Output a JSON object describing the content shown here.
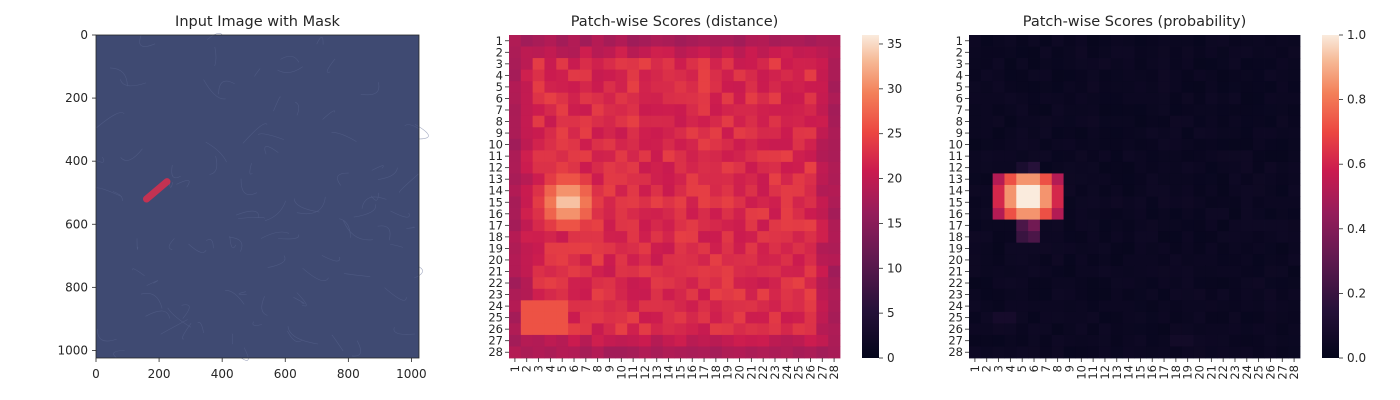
{
  "chart_data": [
    {
      "type": "image",
      "title": "Input Image with Mask",
      "xlim": [
        0,
        1024
      ],
      "ylim": [
        1024,
        0
      ],
      "x_ticks": [
        "0",
        "200",
        "400",
        "600",
        "800",
        "1000"
      ],
      "y_ticks": [
        "0",
        "200",
        "400",
        "600",
        "800",
        "1000"
      ],
      "x_tick_values": [
        0,
        200,
        400,
        600,
        800,
        1000
      ],
      "y_tick_values": [
        0,
        200,
        400,
        600,
        800,
        1000
      ],
      "background_color": "#3f4a72",
      "mask_color": "#d2304f",
      "mask_region": {
        "x_start": 160,
        "y_start": 520,
        "x_end": 225,
        "y_end": 465
      }
    },
    {
      "type": "heatmap",
      "title": "Patch-wise Scores (distance)",
      "rows": 28,
      "cols": 28,
      "row_labels": [
        "1",
        "2",
        "3",
        "4",
        "5",
        "6",
        "7",
        "8",
        "9",
        "10",
        "11",
        "12",
        "13",
        "14",
        "15",
        "16",
        "17",
        "18",
        "19",
        "20",
        "21",
        "22",
        "23",
        "24",
        "25",
        "26",
        "27",
        "28"
      ],
      "col_labels": [
        "1",
        "2",
        "3",
        "4",
        "5",
        "6",
        "7",
        "8",
        "9",
        "10",
        "11",
        "12",
        "13",
        "14",
        "15",
        "16",
        "17",
        "18",
        "19",
        "20",
        "21",
        "22",
        "23",
        "24",
        "25",
        "26",
        "27",
        "28"
      ],
      "vmin": 0,
      "vmax": 36,
      "colorbar_ticks": [
        0,
        5,
        10,
        15,
        20,
        25,
        30,
        35
      ],
      "colorbar_tick_labels": [
        "0",
        "5",
        "10",
        "15",
        "20",
        "25",
        "30",
        "35"
      ],
      "colormap": "rocket",
      "base_value": 20,
      "border_value": 18,
      "anomaly": {
        "center_row": 15,
        "center_col": 5.5,
        "peak_value": 36,
        "radius": 3
      },
      "elevated_region": {
        "value": 22.5,
        "row_start": 3,
        "row_end": 26,
        "col_start": 3,
        "col_end": 26
      }
    },
    {
      "type": "heatmap",
      "title": "Patch-wise Scores (probability)",
      "rows": 28,
      "cols": 28,
      "row_labels": [
        "1",
        "2",
        "3",
        "4",
        "5",
        "6",
        "7",
        "8",
        "9",
        "10",
        "11",
        "12",
        "13",
        "14",
        "15",
        "16",
        "17",
        "18",
        "19",
        "20",
        "21",
        "22",
        "23",
        "24",
        "25",
        "26",
        "27",
        "28"
      ],
      "col_labels": [
        "1",
        "2",
        "3",
        "4",
        "5",
        "6",
        "7",
        "8",
        "9",
        "10",
        "11",
        "12",
        "13",
        "14",
        "15",
        "16",
        "17",
        "18",
        "19",
        "20",
        "21",
        "22",
        "23",
        "24",
        "25",
        "26",
        "27",
        "28"
      ],
      "vmin": 0,
      "vmax": 1,
      "colorbar_ticks": [
        0,
        0.2,
        0.4,
        0.6,
        0.8,
        1.0
      ],
      "colorbar_tick_labels": [
        "0.0",
        "0.2",
        "0.4",
        "0.6",
        "0.8",
        "1.0"
      ],
      "colormap": "rocket",
      "base_value": 0.02,
      "anomaly": {
        "center_row": 15,
        "center_col": 5.5,
        "peak_value": 1.0,
        "radius": 3
      },
      "hot_cells": [
        {
          "row": 12,
          "col": 5,
          "value": 0.1
        },
        {
          "row": 12,
          "col": 6,
          "value": 0.15
        },
        {
          "row": 17,
          "col": 5,
          "value": 0.25
        },
        {
          "row": 17,
          "col": 6,
          "value": 0.35
        },
        {
          "row": 18,
          "col": 5,
          "value": 0.2
        },
        {
          "row": 18,
          "col": 6,
          "value": 0.25
        },
        {
          "row": 25,
          "col": 3,
          "value": 0.08
        },
        {
          "row": 25,
          "col": 4,
          "value": 0.08
        },
        {
          "row": 27,
          "col": 18,
          "value": 0.07
        },
        {
          "row": 27,
          "col": 19,
          "value": 0.07
        },
        {
          "row": 12,
          "col": 24,
          "value": 0.05
        },
        {
          "row": 8,
          "col": 18,
          "value": 0.05
        }
      ]
    }
  ]
}
